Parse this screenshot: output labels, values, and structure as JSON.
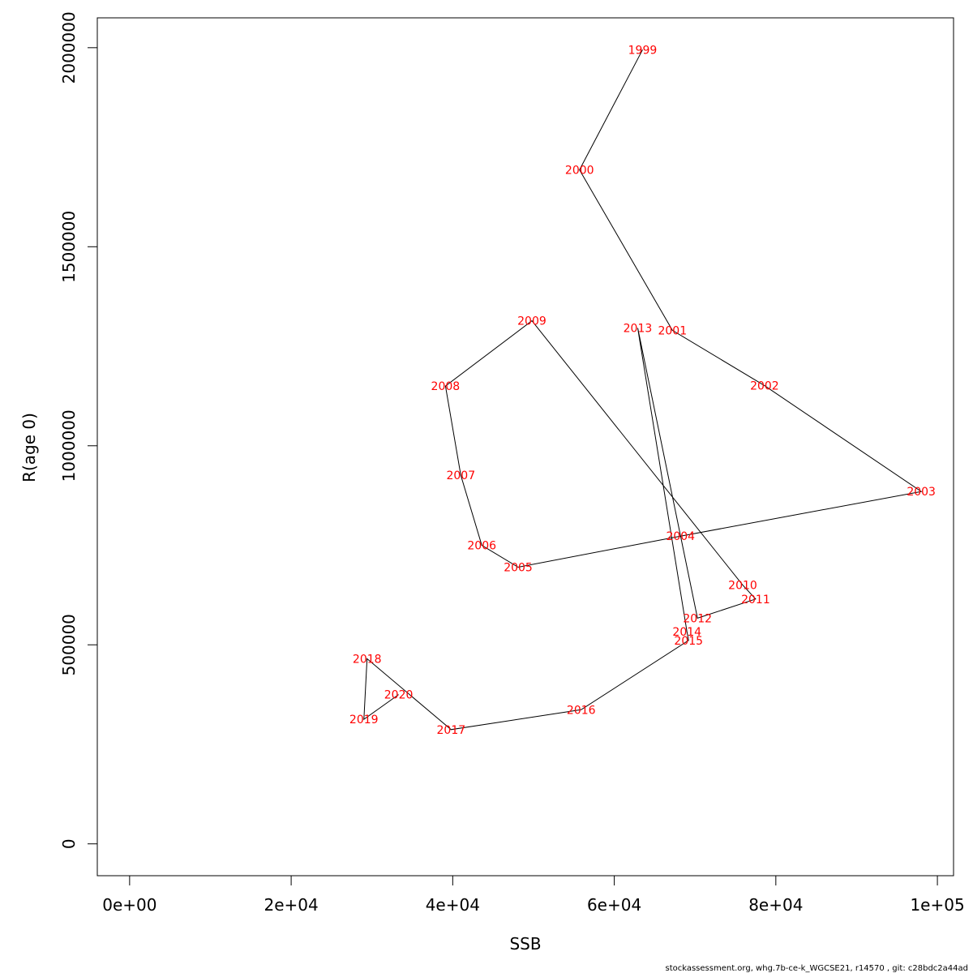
{
  "chart_data": {
    "type": "line",
    "xlabel": "SSB",
    "ylabel": "R(age 0)",
    "xlim": [
      -4000,
      102000
    ],
    "ylim": [
      -80000,
      2075000
    ],
    "x_ticks": [
      0,
      20000,
      40000,
      60000,
      80000,
      100000
    ],
    "x_tick_labels": [
      "0e+00",
      "2e+04",
      "4e+04",
      "6e+04",
      "8e+04",
      "1e+05"
    ],
    "y_ticks": [
      0,
      500000,
      1000000,
      1500000,
      2000000
    ],
    "y_tick_labels": [
      "0",
      "500000",
      "1000000",
      "1500000",
      "2000000"
    ],
    "grid": false,
    "line_color": "#000000",
    "label_color": "#ff0000",
    "points": [
      {
        "year": "1999",
        "x": 63500,
        "y": 1995000
      },
      {
        "year": "2000",
        "x": 55700,
        "y": 1693000
      },
      {
        "year": "2001",
        "x": 67200,
        "y": 1290000
      },
      {
        "year": "2002",
        "x": 78600,
        "y": 1151000
      },
      {
        "year": "2003",
        "x": 98000,
        "y": 885000
      },
      {
        "year": "2004",
        "x": 68200,
        "y": 773000
      },
      {
        "year": "2005",
        "x": 48100,
        "y": 695000
      },
      {
        "year": "2006",
        "x": 43600,
        "y": 750000
      },
      {
        "year": "2007",
        "x": 41000,
        "y": 926000
      },
      {
        "year": "2008",
        "x": 39100,
        "y": 1150000
      },
      {
        "year": "2009",
        "x": 49800,
        "y": 1314000
      },
      {
        "year": "2010",
        "x": 75900,
        "y": 650000
      },
      {
        "year": "2011",
        "x": 77500,
        "y": 615000
      },
      {
        "year": "2012",
        "x": 70300,
        "y": 567000
      },
      {
        "year": "2013",
        "x": 62900,
        "y": 1296000
      },
      {
        "year": "2014",
        "x": 69000,
        "y": 533000
      },
      {
        "year": "2015",
        "x": 69200,
        "y": 511000
      },
      {
        "year": "2016",
        "x": 55900,
        "y": 337000
      },
      {
        "year": "2017",
        "x": 39800,
        "y": 287000
      },
      {
        "year": "2018",
        "x": 29400,
        "y": 465000
      },
      {
        "year": "2019",
        "x": 29000,
        "y": 313000
      },
      {
        "year": "2020",
        "x": 33300,
        "y": 375000
      }
    ]
  },
  "footer": {
    "caption": "stockassessment.org, whg.7b-ce-k_WGCSE21, r14570 , git: c28bdc2a44ad"
  }
}
